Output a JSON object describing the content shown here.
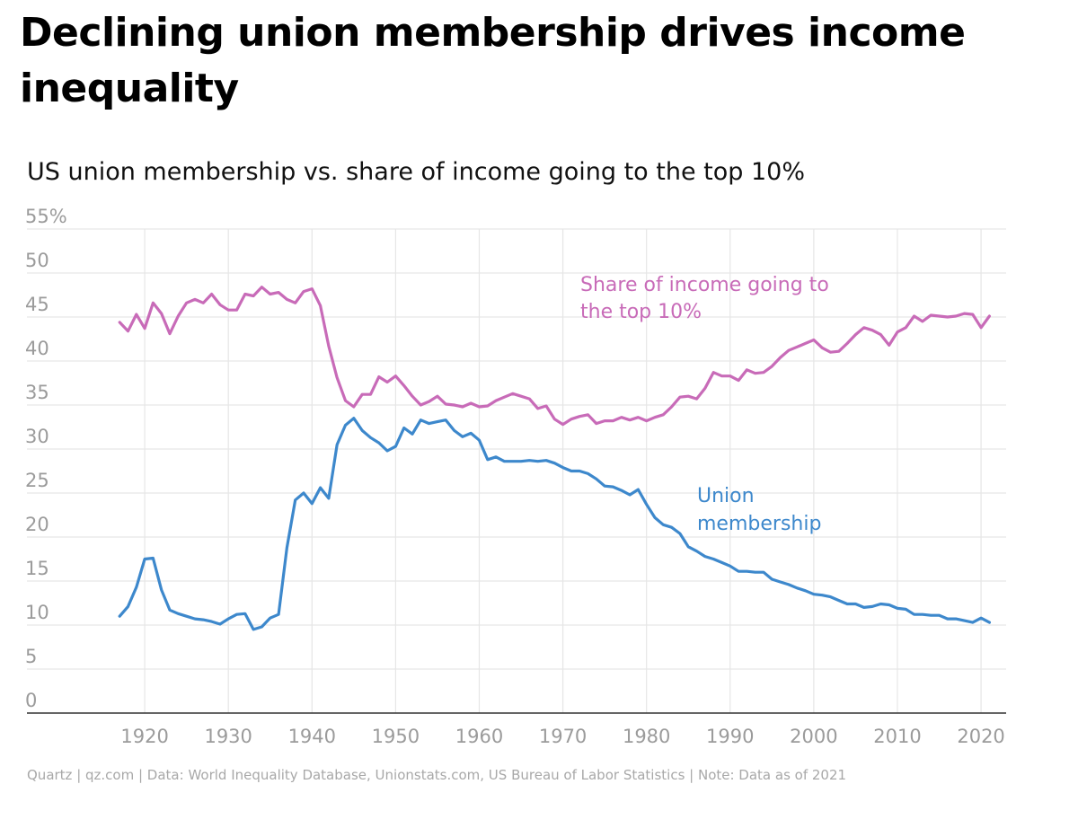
{
  "title": "Declining union membership drives income inequality",
  "subtitle": "US union membership vs. share of income going to the top 10%",
  "footer": "Quartz | qz.com | Data: World Inequality Database, Unionstats.com, US Bureau of Labor Statistics | Note: Data as of 2021",
  "colors": {
    "income": "#c86bb8",
    "union": "#3d88cc",
    "grid": "#e6e6e6",
    "tick": "#9b9b9b",
    "axis": "#333333"
  },
  "chart_data": {
    "type": "line",
    "title": "US union membership vs. share of income going to the top 10%",
    "xlabel": "",
    "ylabel": "",
    "xlim": [
      1910,
      2023
    ],
    "ylim": [
      0,
      55
    ],
    "y_ticks": [
      0,
      5,
      10,
      15,
      20,
      25,
      30,
      35,
      40,
      45,
      50,
      55
    ],
    "y_tick_labels": [
      "0",
      "5",
      "10",
      "15",
      "20",
      "25",
      "30",
      "35",
      "40",
      "45",
      "50",
      "55%"
    ],
    "x_ticks": [
      1920,
      1930,
      1940,
      1950,
      1960,
      1970,
      1980,
      1990,
      2000,
      2010,
      2020
    ],
    "x_tick_labels": [
      "1920",
      "1930",
      "1940",
      "1950",
      "1960",
      "1970",
      "1980",
      "1990",
      "2000",
      "2010",
      "2020"
    ],
    "grid": true,
    "series": [
      {
        "name": "Share of income going to the top 10%",
        "label_lines": [
          "Share of income going to",
          "the top 10%"
        ],
        "color": "#c86bb8",
        "x": [
          1917,
          1918,
          1919,
          1920,
          1921,
          1922,
          1923,
          1924,
          1925,
          1926,
          1927,
          1928,
          1929,
          1930,
          1931,
          1932,
          1933,
          1934,
          1935,
          1936,
          1937,
          1938,
          1939,
          1940,
          1941,
          1942,
          1943,
          1944,
          1945,
          1946,
          1947,
          1948,
          1949,
          1950,
          1951,
          1952,
          1953,
          1954,
          1955,
          1956,
          1957,
          1958,
          1959,
          1960,
          1961,
          1962,
          1963,
          1964,
          1965,
          1966,
          1967,
          1968,
          1969,
          1970,
          1971,
          1972,
          1973,
          1974,
          1975,
          1976,
          1977,
          1978,
          1979,
          1980,
          1981,
          1982,
          1983,
          1984,
          1985,
          1986,
          1987,
          1988,
          1989,
          1990,
          1991,
          1992,
          1993,
          1994,
          1995,
          1996,
          1997,
          1998,
          1999,
          2000,
          2001,
          2002,
          2003,
          2004,
          2005,
          2006,
          2007,
          2008,
          2009,
          2010,
          2011,
          2012,
          2013,
          2014,
          2015,
          2016,
          2017,
          2018,
          2019,
          2020,
          2021
        ],
        "values": [
          44.4,
          43.4,
          45.3,
          43.7,
          46.6,
          45.4,
          43.1,
          45.1,
          46.6,
          47.0,
          46.6,
          47.6,
          46.4,
          45.8,
          45.8,
          47.6,
          47.4,
          48.4,
          47.6,
          47.8,
          47.0,
          46.6,
          47.9,
          48.2,
          46.3,
          41.7,
          38.1,
          35.5,
          34.8,
          36.2,
          36.2,
          38.2,
          37.6,
          38.3,
          37.2,
          36.0,
          35.0,
          35.4,
          36.0,
          35.1,
          35.0,
          34.8,
          35.2,
          34.8,
          34.9,
          35.5,
          35.9,
          36.3,
          36.0,
          35.7,
          34.6,
          34.9,
          33.4,
          32.8,
          33.4,
          33.7,
          33.9,
          32.9,
          33.2,
          33.2,
          33.6,
          33.3,
          33.6,
          33.2,
          33.6,
          33.9,
          34.8,
          35.9,
          36.0,
          35.7,
          36.9,
          38.7,
          38.3,
          38.3,
          37.8,
          39.0,
          38.6,
          38.7,
          39.4,
          40.4,
          41.2,
          41.6,
          42.0,
          42.4,
          41.5,
          41.0,
          41.1,
          42.0,
          43.0,
          43.8,
          43.5,
          43.0,
          41.8,
          43.3,
          43.8,
          45.1,
          44.5,
          45.2,
          45.1,
          45.0,
          45.1,
          45.4,
          45.3,
          43.8,
          45.1
        ]
      },
      {
        "name": "Union membership",
        "label_lines": [
          "Union",
          "membership"
        ],
        "color": "#3d88cc",
        "x": [
          1917,
          1918,
          1919,
          1920,
          1921,
          1922,
          1923,
          1924,
          1925,
          1926,
          1927,
          1928,
          1929,
          1930,
          1931,
          1932,
          1933,
          1934,
          1935,
          1936,
          1937,
          1938,
          1939,
          1940,
          1941,
          1942,
          1943,
          1944,
          1945,
          1946,
          1947,
          1948,
          1949,
          1950,
          1951,
          1952,
          1953,
          1954,
          1955,
          1956,
          1957,
          1958,
          1959,
          1960,
          1961,
          1962,
          1963,
          1964,
          1965,
          1966,
          1967,
          1968,
          1969,
          1970,
          1971,
          1972,
          1973,
          1974,
          1975,
          1976,
          1977,
          1978,
          1979,
          1980,
          1981,
          1982,
          1983,
          1984,
          1985,
          1986,
          1987,
          1988,
          1989,
          1990,
          1991,
          1992,
          1993,
          1994,
          1995,
          1996,
          1997,
          1998,
          1999,
          2000,
          2001,
          2002,
          2003,
          2004,
          2005,
          2006,
          2007,
          2008,
          2009,
          2010,
          2011,
          2012,
          2013,
          2014,
          2015,
          2016,
          2017,
          2018,
          2019,
          2020,
          2021
        ],
        "values": [
          11.0,
          12.1,
          14.3,
          17.5,
          17.6,
          14.0,
          11.7,
          11.3,
          11.0,
          10.7,
          10.6,
          10.4,
          10.1,
          10.7,
          11.2,
          11.3,
          9.5,
          9.8,
          10.8,
          11.2,
          18.8,
          24.2,
          25.0,
          23.8,
          25.6,
          24.4,
          30.5,
          32.7,
          33.5,
          32.1,
          31.3,
          30.7,
          29.8,
          30.3,
          32.4,
          31.7,
          33.3,
          32.9,
          33.1,
          33.3,
          32.1,
          31.4,
          31.8,
          31.0,
          28.8,
          29.1,
          28.6,
          28.6,
          28.6,
          28.7,
          28.6,
          28.7,
          28.4,
          27.9,
          27.5,
          27.5,
          27.2,
          26.6,
          25.8,
          25.7,
          25.3,
          24.8,
          25.4,
          23.7,
          22.2,
          21.4,
          21.1,
          20.4,
          18.9,
          18.4,
          17.8,
          17.5,
          17.1,
          16.7,
          16.1,
          16.1,
          16.0,
          16.0,
          15.2,
          14.9,
          14.6,
          14.2,
          13.9,
          13.5,
          13.4,
          13.2,
          12.8,
          12.4,
          12.4,
          12.0,
          12.1,
          12.4,
          12.3,
          11.9,
          11.8,
          11.2,
          11.2,
          11.1,
          11.1,
          10.7,
          10.7,
          10.5,
          10.3,
          10.8,
          10.3
        ]
      }
    ]
  }
}
